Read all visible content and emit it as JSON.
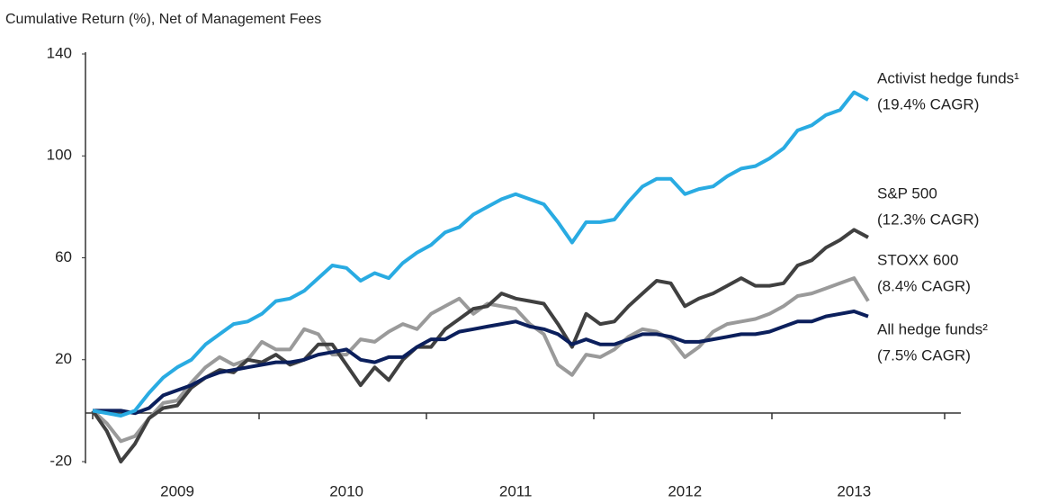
{
  "chart_data": {
    "type": "line",
    "title": "Cumulative Return (%), Net of Management Fees",
    "categories": [
      null,
      null,
      null,
      null,
      null,
      null,
      "2009",
      null,
      null,
      null,
      null,
      null,
      null,
      null,
      null,
      null,
      null,
      null,
      "2010",
      null,
      null,
      null,
      null,
      null,
      null,
      null,
      null,
      null,
      null,
      null,
      "2011",
      null,
      null,
      null,
      null,
      null,
      null,
      null,
      null,
      null,
      null,
      null,
      "2012",
      null,
      null,
      null,
      null,
      null,
      null,
      null,
      null,
      null,
      null,
      null,
      "2013",
      null
    ],
    "ylim": [
      -20,
      140
    ],
    "yticks": [
      -20,
      20,
      60,
      100,
      140
    ],
    "series": [
      {
        "name": "STOXX 600",
        "note": "(8.4% CAGR)",
        "color": "#9a9a9a",
        "values": [
          0,
          -5,
          -12,
          -10,
          -3,
          3,
          4,
          11,
          17,
          21,
          18,
          20,
          27,
          24,
          24,
          32,
          30,
          22,
          22,
          28,
          27,
          31,
          34,
          32,
          38,
          41,
          44,
          38,
          42,
          41,
          40,
          34,
          30,
          18,
          14,
          22,
          21,
          24,
          29,
          32,
          31,
          28,
          21,
          25,
          31,
          34,
          35,
          36,
          38,
          41,
          45,
          46,
          48,
          50,
          52,
          43
        ]
      },
      {
        "name": "S&P 500",
        "note": "(12.3% CAGR)",
        "color": "#404040",
        "values": [
          0,
          -8,
          -20,
          -13,
          -3,
          1,
          2,
          9,
          13,
          16,
          15,
          20,
          19,
          22,
          18,
          20,
          26,
          26,
          18,
          10,
          17,
          12,
          20,
          25,
          25,
          32,
          36,
          40,
          41,
          46,
          44,
          43,
          42,
          34,
          25,
          38,
          34,
          35,
          41,
          46,
          51,
          50,
          41,
          44,
          46,
          49,
          52,
          49,
          49,
          50,
          57,
          59,
          64,
          67,
          71,
          68
        ]
      },
      {
        "name": "All hedge funds²",
        "note": "(7.5% CAGR)",
        "color": "#0b1f5c",
        "values": [
          0,
          0,
          0,
          -1,
          1,
          6,
          8,
          10,
          13,
          15,
          16,
          17,
          18,
          19,
          19,
          20,
          22,
          23,
          24,
          20,
          19,
          21,
          21,
          25,
          28,
          28,
          31,
          32,
          33,
          34,
          35,
          33,
          32,
          30,
          26,
          28,
          26,
          26,
          28,
          30,
          30,
          29,
          27,
          27,
          28,
          29,
          30,
          30,
          31,
          33,
          35,
          35,
          37,
          38,
          39,
          37
        ]
      },
      {
        "name": "Activist hedge funds¹",
        "note": "(19.4% CAGR)",
        "color": "#29abe2",
        "values": [
          0,
          -1,
          -2,
          0,
          7,
          13,
          17,
          20,
          26,
          30,
          34,
          35,
          38,
          43,
          44,
          47,
          52,
          57,
          56,
          51,
          54,
          52,
          58,
          62,
          65,
          70,
          72,
          77,
          80,
          83,
          85,
          83,
          81,
          74,
          66,
          74,
          74,
          75,
          82,
          88,
          91,
          91,
          85,
          87,
          88,
          92,
          95,
          96,
          99,
          103,
          110,
          112,
          116,
          118,
          125,
          122
        ]
      }
    ]
  }
}
